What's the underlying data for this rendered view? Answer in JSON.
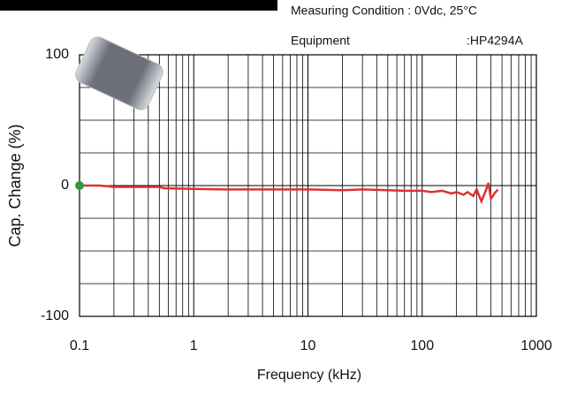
{
  "header": {
    "condition": "Measuring Condition : 0Vdc, 25°C",
    "equipment_label": "Equipment",
    "equipment_value": ":HP4294A"
  },
  "chart_data": {
    "type": "line",
    "xlabel": "Frequency (kHz)",
    "ylabel": "Cap. Change (%)",
    "xscale": "log",
    "xlim": [
      0.1,
      1000
    ],
    "xticks": [
      0.1,
      1,
      10,
      100,
      1000
    ],
    "ylim": [
      -100,
      100
    ],
    "yticks": [
      -100,
      0,
      100
    ],
    "ygrid": [
      -75,
      -50,
      -25,
      25,
      50,
      75
    ],
    "grid": true,
    "minor_grid": true,
    "x": [
      0.1,
      0.15,
      0.2,
      0.5,
      0.55,
      1,
      2,
      5,
      10,
      20,
      30,
      50,
      70,
      100,
      120,
      150,
      180,
      200,
      230,
      250,
      280,
      300,
      330,
      360,
      380,
      400,
      430,
      460
    ],
    "series": [
      {
        "color": "#e03030",
        "values": [
          0,
          0,
          -1,
          -1,
          -2,
          -2.5,
          -3,
          -3,
          -3,
          -3.5,
          -3,
          -3.5,
          -4,
          -4,
          -5,
          -4,
          -6,
          -5,
          -7,
          -5,
          -8,
          -3,
          -12,
          -4,
          2,
          -10,
          -6,
          -3
        ]
      }
    ],
    "marker": {
      "x": 0.1,
      "y": 0,
      "color": "#2e9b3c"
    }
  }
}
